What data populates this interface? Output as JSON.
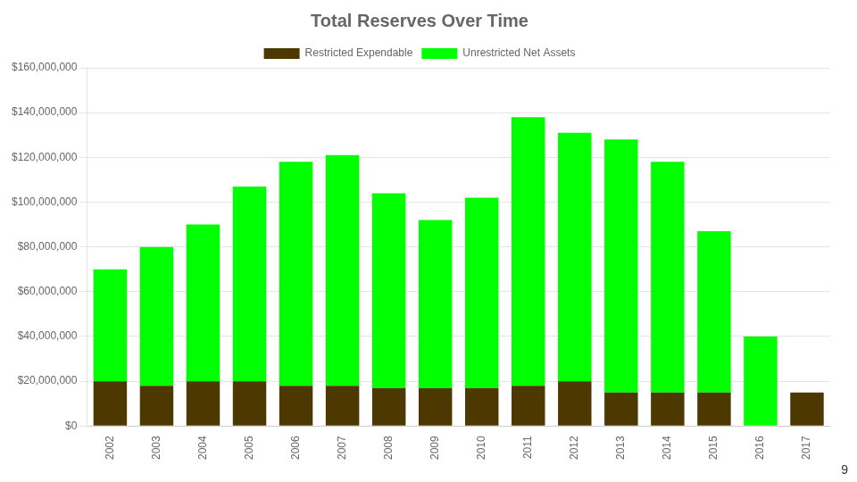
{
  "chart_data": {
    "type": "bar",
    "stacked": true,
    "title": "Total Reserves Over Time",
    "categories": [
      "2002",
      "2003",
      "2004",
      "2005",
      "2006",
      "2007",
      "2008",
      "2009",
      "2010",
      "2011",
      "2012",
      "2013",
      "2014",
      "2015",
      "2016",
      "2017"
    ],
    "series": [
      {
        "name": "Restricted Expendable",
        "color": "#4d3800",
        "values": [
          20000000,
          18000000,
          20000000,
          20000000,
          18000000,
          18000000,
          17000000,
          17000000,
          17000000,
          18000000,
          20000000,
          15000000,
          15000000,
          15000000,
          0,
          15000000
        ]
      },
      {
        "name": "Unrestricted Net Assets",
        "color": "#00ff00",
        "values": [
          50000000,
          62000000,
          70000000,
          87000000,
          100000000,
          103000000,
          87000000,
          75000000,
          85000000,
          120000000,
          111000000,
          113000000,
          103000000,
          72000000,
          40000000,
          0
        ]
      }
    ],
    "ylim": [
      0,
      160000000
    ],
    "yticks": [
      {
        "value": 0,
        "label": "$0"
      },
      {
        "value": 20000000,
        "label": "$20,000,000"
      },
      {
        "value": 40000000,
        "label": "$40,000,000"
      },
      {
        "value": 60000000,
        "label": "$60,000,000"
      },
      {
        "value": 80000000,
        "label": "$80,000,000"
      },
      {
        "value": 100000000,
        "label": "$100,000,000"
      },
      {
        "value": 120000000,
        "label": "$120,000,000"
      },
      {
        "value": 140000000,
        "label": "$140,000,000"
      },
      {
        "value": 160000000,
        "label": "$160,000,000"
      }
    ],
    "grid": true,
    "legend": "top",
    "annotations": [
      "9"
    ]
  }
}
